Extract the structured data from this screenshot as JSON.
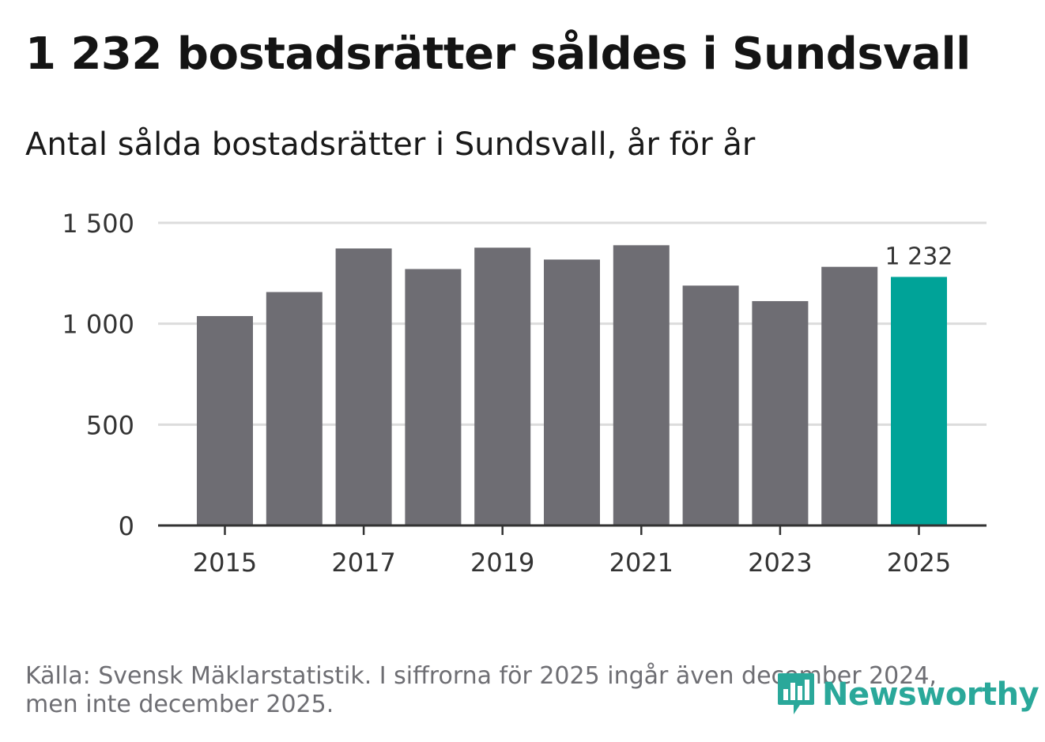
{
  "title": "1 232 bostadsrätter såldes i Sundsvall",
  "subtitle": "Antal sålda bostadsrätter i Sundsvall, år för år",
  "footer": {
    "source_line1": "Källa: Svensk Mäklarstatistik. I siffrorna för 2025 ingår även december 2024,",
    "source_line2": "men inte december 2025."
  },
  "logo": {
    "text": "Newsworthy",
    "icon": "bar-chart-bubble-icon"
  },
  "colors": {
    "bar": "#6e6d73",
    "highlight": "#00a398",
    "grid": "#dcdcdc",
    "axis": "#333333"
  },
  "chart_data": {
    "type": "bar",
    "title": "Antal sålda bostadsrätter i Sundsvall, år för år",
    "xlabel": "",
    "ylabel": "",
    "categories": [
      "2015",
      "2016",
      "2017",
      "2018",
      "2019",
      "2020",
      "2021",
      "2022",
      "2023",
      "2024",
      "2025"
    ],
    "values": [
      1038,
      1157,
      1373,
      1271,
      1377,
      1318,
      1389,
      1189,
      1112,
      1282,
      1232
    ],
    "highlight_index": 10,
    "highlight_label": "1 232",
    "ylim": [
      0,
      1500
    ],
    "yticks": [
      0,
      500,
      1000,
      1500
    ],
    "ytick_labels": [
      "0",
      "500",
      "1 000",
      "1 500"
    ],
    "xtick_labels": [
      "2015",
      "2017",
      "2019",
      "2021",
      "2023",
      "2025"
    ],
    "grid": true
  }
}
